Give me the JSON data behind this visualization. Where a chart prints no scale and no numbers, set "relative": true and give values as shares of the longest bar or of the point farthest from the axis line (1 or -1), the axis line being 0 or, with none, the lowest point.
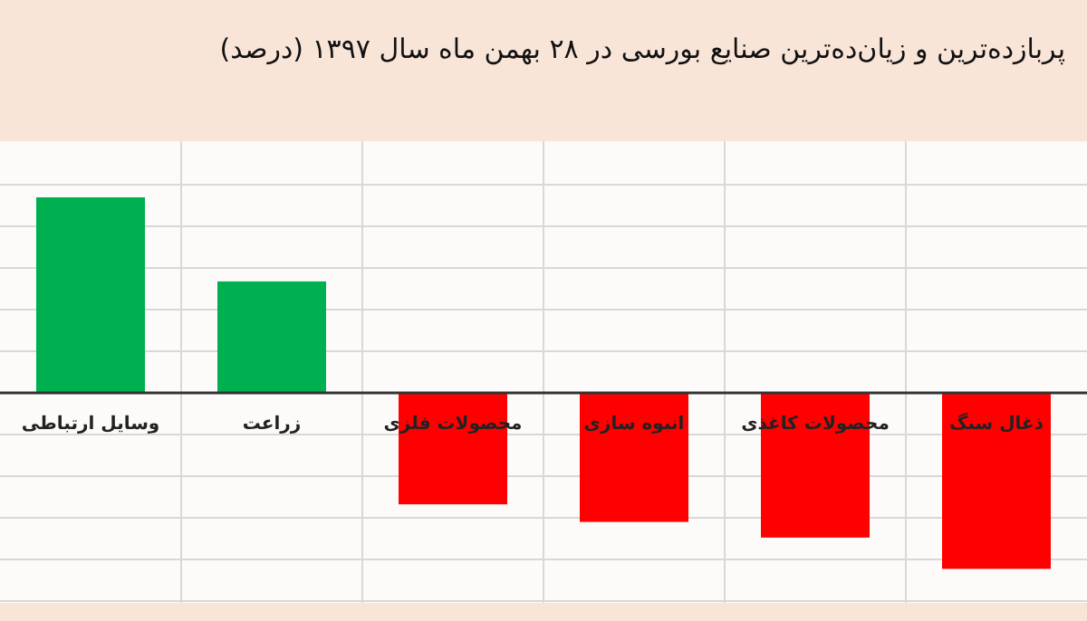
{
  "chart_data": {
    "type": "bar",
    "title": "پربازده‌ترین و زیان‌ده‌ترین صنایع بورسی در ۲۸ بهمن ماه سال ۱۳۹۷ (درصد)",
    "relative": true,
    "grid": true,
    "categories": [
      "وسایل ارتباطی",
      "زراعت",
      "محصولات فلزی",
      "انبوه سازی",
      "محصولات کاغذی",
      "ذغال سنگ"
    ],
    "values": [
      1,
      0.57,
      -0.57,
      -0.66,
      -0.74,
      -0.9
    ],
    "colors": [
      "#00b050",
      "#00b050",
      "#ff0000",
      "#ff0000",
      "#ff0000",
      "#ff0000"
    ]
  }
}
